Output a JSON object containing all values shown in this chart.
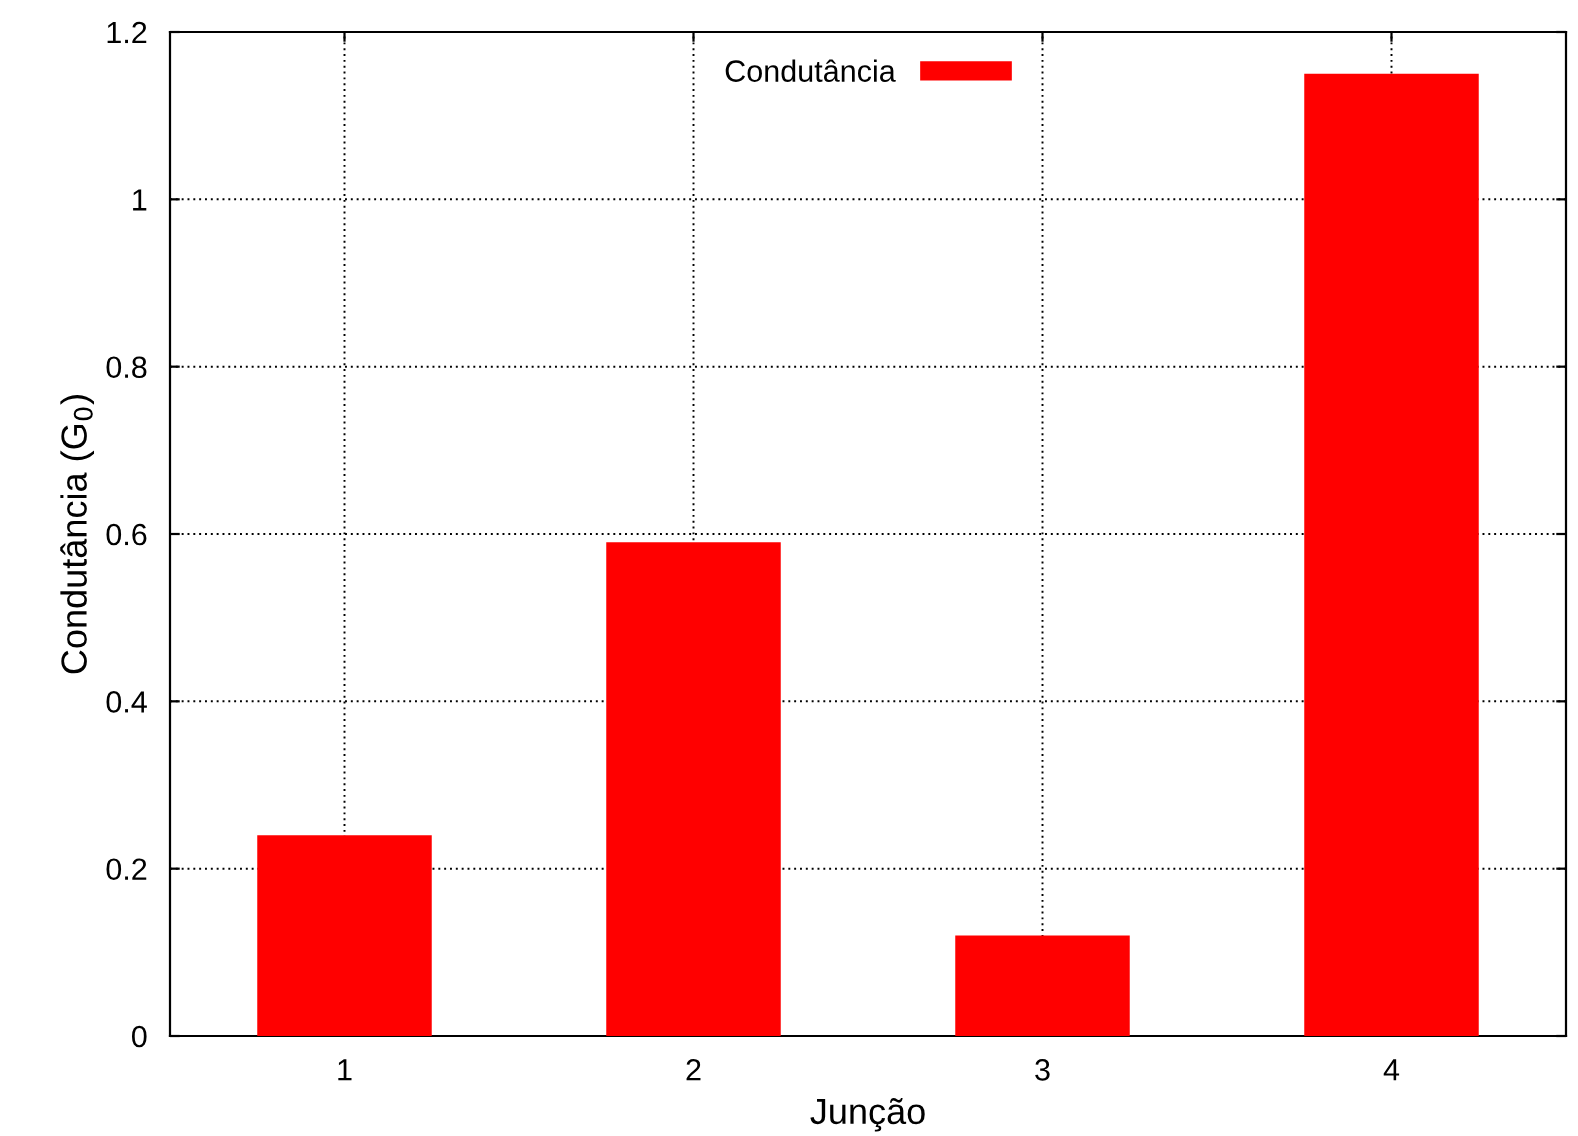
{
  "chart_data": {
    "type": "bar",
    "xlabel": "Junção",
    "ylabel": "Condutância (G$_{0}$)",
    "categories": [
      "1",
      "2",
      "3",
      "4"
    ],
    "series": [
      {
        "name": "Condutância",
        "color": "#ff0000",
        "values": [
          0.24,
          0.59,
          0.12,
          1.15
        ]
      }
    ],
    "ylim": [
      0,
      1.2
    ],
    "yticks": [
      0,
      0.2,
      0.4,
      0.6,
      0.8,
      1,
      1.2
    ],
    "grid": true,
    "legend": "top"
  }
}
